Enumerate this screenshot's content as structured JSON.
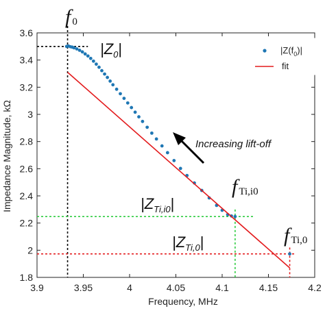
{
  "chart_data": {
    "type": "scatter",
    "title": "",
    "xlabel": "Frequency, MHz",
    "ylabel": "Impedance Magnitude, kΩ",
    "xlim": [
      3.9,
      4.2
    ],
    "ylim": [
      1.8,
      3.6
    ],
    "xticks": [
      "3.9",
      "3.95",
      "4",
      "4.05",
      "4.1",
      "4.15",
      "4.2"
    ],
    "xtick_values": [
      3.9,
      3.95,
      4.0,
      4.05,
      4.1,
      4.15,
      4.2
    ],
    "yticks": [
      "1.8",
      "2",
      "2.2",
      "2.4",
      "2.6",
      "2.8",
      "3",
      "3.2",
      "3.4",
      "3.6"
    ],
    "ytick_values": [
      1.8,
      2.0,
      2.2,
      2.4,
      2.6,
      2.8,
      3.0,
      3.2,
      3.4,
      3.6
    ],
    "grid": false,
    "legend_position": "top-right",
    "legend": {
      "series_label_main": "|Z(f",
      "series_label_sub": "0",
      "series_label_tail": ")|",
      "fit_label": "fit"
    },
    "series": [
      {
        "name": "|Z(f0)|",
        "style": "markers",
        "color": "#1f77b4",
        "x": [
          3.932,
          3.934,
          3.936,
          3.938,
          3.94,
          3.943,
          3.946,
          3.949,
          3.952,
          3.955,
          3.958,
          3.961,
          3.964,
          3.967,
          3.97,
          3.973,
          3.976,
          3.979,
          3.982,
          3.986,
          3.99,
          3.994,
          3.998,
          4.002,
          4.006,
          4.01,
          4.014,
          4.019,
          4.024,
          4.029,
          4.035,
          4.041,
          4.048,
          4.055,
          4.062,
          4.07,
          4.078,
          4.086,
          4.094,
          4.1,
          4.106,
          4.11,
          4.114,
          4.173
        ],
        "y": [
          3.5,
          3.503,
          3.498,
          3.495,
          3.49,
          3.482,
          3.472,
          3.46,
          3.445,
          3.43,
          3.412,
          3.392,
          3.37,
          3.347,
          3.322,
          3.297,
          3.272,
          3.245,
          3.218,
          3.185,
          3.152,
          3.118,
          3.084,
          3.05,
          3.016,
          2.982,
          2.948,
          2.905,
          2.862,
          2.819,
          2.768,
          2.718,
          2.66,
          2.602,
          2.55,
          2.495,
          2.44,
          2.385,
          2.33,
          2.294,
          2.262,
          2.252,
          2.248,
          1.973
        ]
      },
      {
        "name": "fit",
        "style": "line",
        "color": "#e31a1c",
        "x": [
          3.933,
          4.173
        ],
        "y": [
          3.31,
          1.87
        ]
      }
    ],
    "reference_lines": [
      {
        "axis": "x",
        "value": 3.933,
        "color": "#000000"
      },
      {
        "axis": "x",
        "value": 4.114,
        "color": "#2ecc40"
      },
      {
        "axis": "x",
        "value": 4.173,
        "color": "#e31a1c"
      },
      {
        "axis": "y",
        "value": 3.5,
        "color": "#000000",
        "x_from": 3.9,
        "x_to": 3.955
      },
      {
        "axis": "y",
        "value": 2.248,
        "color": "#2ecc40",
        "x_from": 3.9,
        "x_to": 4.135
      },
      {
        "axis": "y",
        "value": 1.973,
        "color": "#e31a1c",
        "x_from": 3.9,
        "x_to": 4.18
      }
    ],
    "annotations": {
      "f0_main": "f",
      "f0_sub": "0",
      "z0_text": "|Z",
      "z0_sub": "0",
      "z0_close": "|",
      "fti_i0_main": "f",
      "fti_i0_sub": "Ti,i0",
      "fti_0_main": "f",
      "fti_0_sub": "Ti,0",
      "zti_i0_text": "|Z",
      "zti_i0_sub": "Ti,i0",
      "zti_i0_close": "|",
      "zti_0_text": "|Z",
      "zti_0_sub": "Ti,0",
      "zti_0_close": "|",
      "arrow_label": "Increasing lift-off"
    }
  }
}
